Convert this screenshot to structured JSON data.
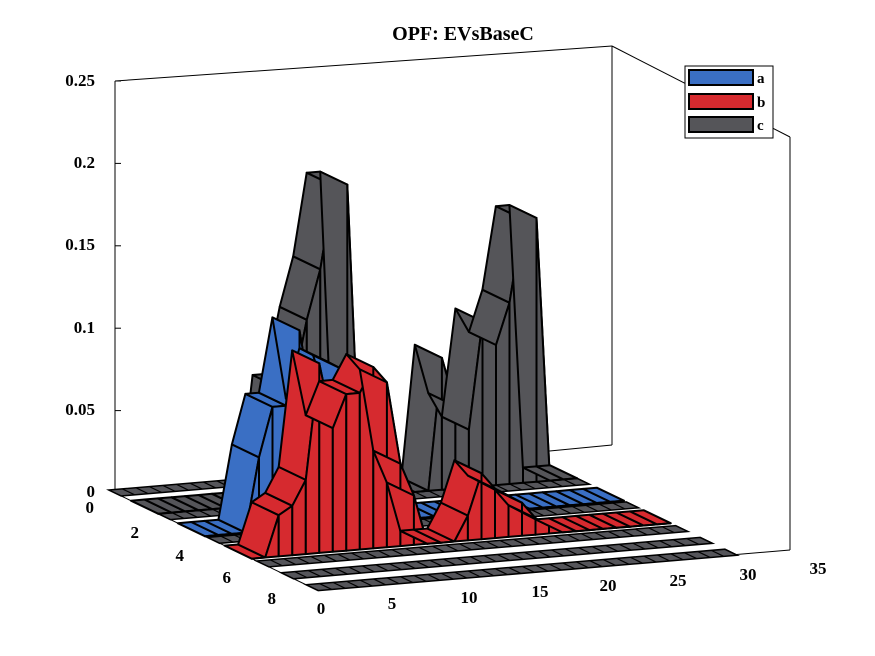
{
  "chart_data": {
    "type": "area",
    "title": "OPF: EVsBaseC",
    "z_ticks": [
      "0",
      "0.05",
      "0.1",
      "0.15",
      "0.2",
      "0.25"
    ],
    "z_range": [
      0,
      0.25
    ],
    "x_ticks": [
      "0",
      "5",
      "10",
      "15",
      "20",
      "25",
      "30",
      "35"
    ],
    "x_range": [
      0,
      35
    ],
    "y_ticks": [
      "0",
      "2",
      "4",
      "6",
      "8"
    ],
    "y_range": [
      0,
      8
    ],
    "legend_position": "top-right",
    "x": [
      0,
      1,
      2,
      3,
      4,
      5,
      6,
      7,
      8,
      9,
      10,
      11,
      12,
      13,
      14,
      15,
      16,
      17,
      18,
      19,
      20,
      21,
      22,
      23,
      24,
      25,
      26,
      27,
      28,
      29,
      30,
      31
    ],
    "series": [
      {
        "name": "a",
        "color": "#3a6fc4",
        "values": [
          0,
          0,
          0,
          0,
          0.045,
          0.075,
          0.075,
          0.12,
          0.07,
          0.1,
          0.095,
          0.07,
          0.035,
          0.025,
          0,
          0,
          0,
          0,
          0,
          0,
          0,
          0,
          0,
          0,
          0,
          0,
          0,
          0,
          0,
          0,
          0,
          0
        ]
      },
      {
        "name": "b",
        "color": "#d62a2f",
        "values": [
          0,
          0,
          0.025,
          0.03,
          0.045,
          0.115,
          0.075,
          0.095,
          0.095,
          0.11,
          0.1,
          0.05,
          0.03,
          0.0,
          0,
          0.0,
          0.015,
          0.04,
          0.03,
          0.025,
          0.02,
          0.01,
          0.005,
          0,
          0,
          0,
          0,
          0,
          0,
          0,
          0,
          0
        ]
      },
      {
        "name": "c",
        "color": "#555559",
        "values": [
          0,
          0,
          0,
          0,
          0,
          0,
          0,
          0,
          0,
          0.07,
          0.07,
          0.11,
          0.14,
          0.19,
          0.19,
          0,
          0,
          0,
          0,
          0,
          0,
          0.08,
          0.05,
          0.035,
          0.1,
          0.085,
          0.11,
          0.16,
          0.16,
          0,
          0,
          0
        ]
      }
    ]
  }
}
